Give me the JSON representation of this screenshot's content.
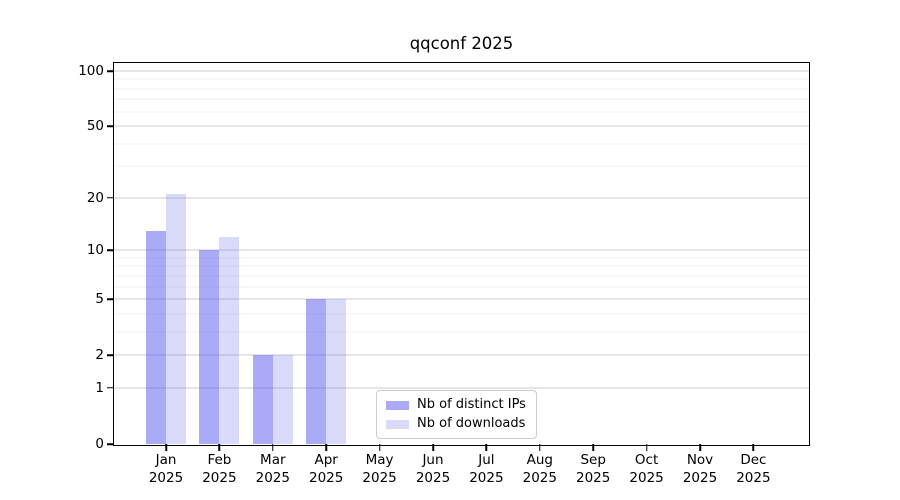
{
  "chart_data": {
    "type": "bar",
    "title": "qqconf 2025",
    "year": "2025",
    "categories": [
      "Jan",
      "Feb",
      "Mar",
      "Apr",
      "May",
      "Jun",
      "Jul",
      "Aug",
      "Sep",
      "Oct",
      "Nov",
      "Dec"
    ],
    "series": [
      {
        "name": "Nb of distinct IPs",
        "color": "rgba(85,85,238,0.50)",
        "values": [
          13,
          10,
          2,
          5,
          null,
          null,
          null,
          null,
          null,
          null,
          null,
          null
        ]
      },
      {
        "name": "Nb of downloads",
        "color": "rgba(85,85,238,0.22)",
        "values": [
          21,
          12,
          2,
          5,
          null,
          null,
          null,
          null,
          null,
          null,
          null,
          null
        ]
      }
    ],
    "yscale": "log1p",
    "ylim": [
      0,
      110
    ],
    "yticks": [
      0,
      1,
      2,
      5,
      10,
      20,
      50,
      100
    ],
    "yticks_minor": [
      3,
      4,
      6,
      7,
      8,
      9,
      30,
      40,
      60,
      70,
      80,
      90
    ],
    "xlabel": "",
    "ylabel": "",
    "grid": "horizontal",
    "legend_position": "lower-center"
  },
  "colors": {
    "background": "#ffffff",
    "axis": "#000000",
    "grid_major": "#cbcbcb",
    "grid_minor": "#efefef",
    "bar_dark_rendered": "#aaaaf5",
    "bar_light_rendered": "#dcdcf8"
  }
}
